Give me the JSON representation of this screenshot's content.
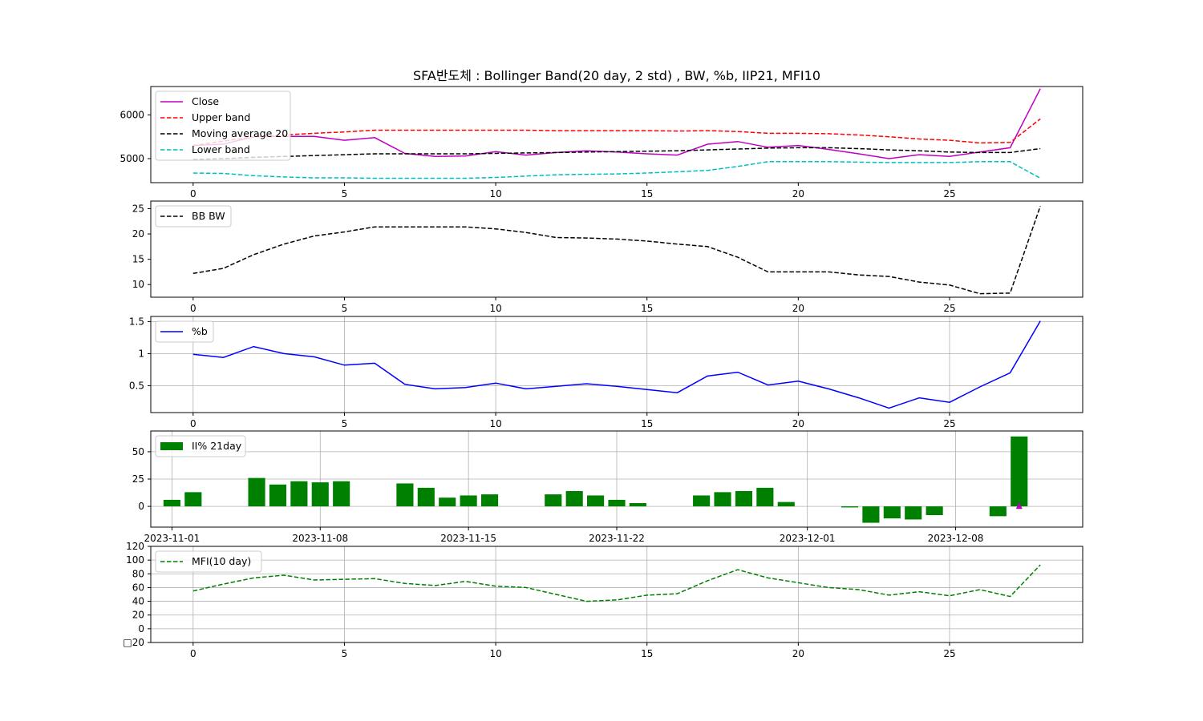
{
  "title": "SFA반도체 : Bollinger Band(20 day, 2 std) , BW, %b, IIP21, MFI10",
  "colors": {
    "close": "#bf00bf",
    "upper": "#ff0000",
    "ma": "#000000",
    "lower": "#00bfbf",
    "bw": "#000000",
    "pb": "#0000ff",
    "ii": "#008000",
    "mfi": "#008000",
    "marker": "#bf00bf"
  },
  "chart_data": [
    {
      "type": "line",
      "x": [
        0,
        1,
        2,
        3,
        4,
        5,
        6,
        7,
        8,
        9,
        10,
        11,
        12,
        13,
        14,
        15,
        16,
        17,
        18,
        19,
        20,
        21,
        22,
        23,
        24,
        25,
        26,
        27,
        28
      ],
      "ylim": [
        4450,
        6650
      ],
      "yticks": [
        5000,
        6000
      ],
      "xticks": [
        0,
        5,
        10,
        15,
        20,
        25
      ],
      "grid": false,
      "legend": "top-left",
      "series": [
        {
          "name": "Close",
          "key": "close",
          "dash": false,
          "values": [
            5300,
            5330,
            5500,
            5510,
            5510,
            5420,
            5480,
            5120,
            5050,
            5060,
            5160,
            5080,
            5140,
            5180,
            5150,
            5110,
            5080,
            5330,
            5390,
            5260,
            5300,
            5210,
            5110,
            5000,
            5090,
            5050,
            5150,
            5250,
            6600
          ]
        },
        {
          "name": "Upper band",
          "key": "upper",
          "dash": true,
          "values": [
            5300,
            5400,
            5500,
            5540,
            5580,
            5610,
            5650,
            5650,
            5650,
            5650,
            5650,
            5650,
            5640,
            5640,
            5640,
            5640,
            5630,
            5640,
            5620,
            5580,
            5580,
            5570,
            5540,
            5500,
            5450,
            5420,
            5360,
            5370,
            5910
          ]
        },
        {
          "name": "Moving average 20",
          "key": "ma",
          "dash": true,
          "values": [
            4980,
            5000,
            5030,
            5050,
            5070,
            5090,
            5110,
            5110,
            5110,
            5110,
            5120,
            5130,
            5140,
            5150,
            5160,
            5170,
            5180,
            5200,
            5220,
            5240,
            5250,
            5250,
            5230,
            5200,
            5180,
            5150,
            5140,
            5140,
            5230
          ]
        },
        {
          "name": "Lower band",
          "key": "lower",
          "dash": true,
          "values": [
            4670,
            4660,
            4610,
            4580,
            4560,
            4560,
            4550,
            4550,
            4550,
            4550,
            4570,
            4600,
            4630,
            4640,
            4650,
            4670,
            4700,
            4730,
            4820,
            4930,
            4930,
            4930,
            4920,
            4910,
            4910,
            4910,
            4930,
            4930,
            4550
          ]
        }
      ]
    },
    {
      "type": "line",
      "x": [
        0,
        1,
        2,
        3,
        4,
        5,
        6,
        7,
        8,
        9,
        10,
        11,
        12,
        13,
        14,
        15,
        16,
        17,
        18,
        19,
        20,
        21,
        22,
        23,
        24,
        25,
        26,
        27,
        28
      ],
      "ylim": [
        7.5,
        26.5
      ],
      "yticks": [
        10,
        15,
        20,
        25
      ],
      "xticks": [
        0,
        5,
        10,
        15,
        20,
        25
      ],
      "grid": false,
      "legend": "top-left",
      "series": [
        {
          "name": "BB BW",
          "key": "bw",
          "dash": true,
          "values": [
            12.2,
            13.2,
            15.9,
            18.0,
            19.6,
            20.4,
            21.4,
            21.4,
            21.4,
            21.4,
            21.0,
            20.3,
            19.3,
            19.2,
            19.0,
            18.6,
            18.0,
            17.5,
            15.4,
            12.5,
            12.5,
            12.5,
            11.9,
            11.6,
            10.5,
            9.9,
            8.2,
            8.3,
            25.5
          ]
        }
      ]
    },
    {
      "type": "line",
      "x": [
        0,
        1,
        2,
        3,
        4,
        5,
        6,
        7,
        8,
        9,
        10,
        11,
        12,
        13,
        14,
        15,
        16,
        17,
        18,
        19,
        20,
        21,
        22,
        23,
        24,
        25,
        26,
        27,
        28
      ],
      "ylim": [
        0.08,
        1.58
      ],
      "yticks": [
        0.5,
        1.0,
        1.5
      ],
      "xticks": [
        0,
        5,
        10,
        15,
        20,
        25
      ],
      "grid": true,
      "legend": "top-left",
      "series": [
        {
          "name": "%b",
          "key": "pb",
          "dash": false,
          "values": [
            0.99,
            0.94,
            1.11,
            1.0,
            0.95,
            0.82,
            0.85,
            0.52,
            0.45,
            0.47,
            0.54,
            0.45,
            0.49,
            0.53,
            0.49,
            0.44,
            0.39,
            0.65,
            0.71,
            0.51,
            0.57,
            0.45,
            0.31,
            0.15,
            0.31,
            0.24,
            0.48,
            0.7,
            1.51
          ]
        }
      ]
    },
    {
      "type": "bar",
      "ylim": [
        -19,
        69
      ],
      "yticks": [
        0,
        25,
        50
      ],
      "xdomain": [
        "2023-10-31",
        "2023-12-14"
      ],
      "xticks": [
        "2023-11-01",
        "2023-11-08",
        "2023-11-15",
        "2023-11-22",
        "2023-12-01",
        "2023-12-08"
      ],
      "grid": true,
      "legend": "top-left",
      "series": [
        {
          "name": "II% 21day",
          "key": "ii",
          "dates": [
            "2023-11-01",
            "2023-11-02",
            "2023-11-05",
            "2023-11-06",
            "2023-11-07",
            "2023-11-08",
            "2023-11-09",
            "2023-11-12",
            "2023-11-13",
            "2023-11-14",
            "2023-11-15",
            "2023-11-16",
            "2023-11-19",
            "2023-11-20",
            "2023-11-21",
            "2023-11-22",
            "2023-11-23",
            "2023-11-26",
            "2023-11-27",
            "2023-11-28",
            "2023-11-29",
            "2023-11-30",
            "2023-12-03",
            "2023-12-04",
            "2023-12-05",
            "2023-12-06",
            "2023-12-07",
            "2023-12-10",
            "2023-12-11"
          ],
          "values": [
            6,
            13,
            26,
            20,
            23,
            22,
            23,
            21,
            17,
            8,
            10,
            11,
            11,
            14,
            10,
            6,
            3,
            10,
            13,
            14,
            17,
            4,
            -1,
            -15,
            -11,
            -12,
            -8,
            -9,
            64
          ]
        }
      ],
      "markers": [
        {
          "date": "2023-12-11",
          "value": 0,
          "key": "marker"
        }
      ]
    },
    {
      "type": "line",
      "x": [
        0,
        1,
        2,
        3,
        4,
        5,
        6,
        7,
        8,
        9,
        10,
        11,
        12,
        13,
        14,
        15,
        16,
        17,
        18,
        19,
        20,
        21,
        22,
        23,
        24,
        25,
        26,
        27,
        28
      ],
      "ylim": [
        -20,
        120
      ],
      "yticks": [
        -20,
        0,
        20,
        40,
        60,
        80,
        100,
        120
      ],
      "ytick_labels": [
        "□20",
        "0",
        "20",
        "40",
        "60",
        "80",
        "100",
        "120"
      ],
      "xticks": [
        0,
        5,
        10,
        15,
        20,
        25
      ],
      "grid": true,
      "legend": "top-left",
      "series": [
        {
          "name": "MFI(10 day)",
          "key": "mfi",
          "dash": true,
          "values": [
            55,
            65,
            74,
            78,
            71,
            72,
            73,
            66,
            63,
            69,
            62,
            60,
            50,
            40,
            42,
            49,
            51,
            70,
            86,
            74,
            67,
            60,
            57,
            49,
            54,
            48,
            57,
            47,
            93
          ]
        }
      ]
    }
  ]
}
